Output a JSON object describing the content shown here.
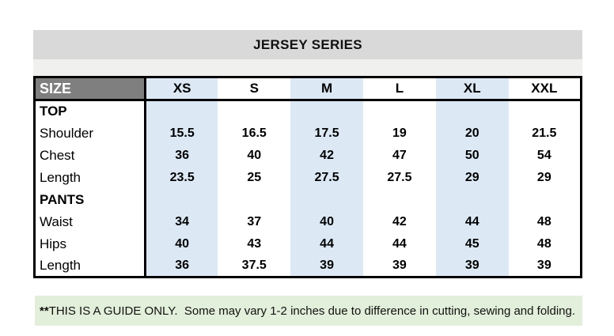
{
  "banner": {
    "title": "JERSEY SERIES",
    "bg": "#d9d9d9"
  },
  "table": {
    "header": {
      "label": "SIZE",
      "columns": [
        "XS",
        "S",
        "M",
        "L",
        "XL",
        "XXL"
      ]
    },
    "band_columns": [
      0,
      2,
      4
    ],
    "rows": [
      {
        "label": "TOP",
        "bold": true,
        "values": [
          "",
          "",
          "",
          "",
          "",
          ""
        ]
      },
      {
        "label": "Shoulder",
        "bold": false,
        "values": [
          "15.5",
          "16.5",
          "17.5",
          "19",
          "20",
          "21.5"
        ]
      },
      {
        "label": "Chest",
        "bold": false,
        "values": [
          "36",
          "40",
          "42",
          "47",
          "50",
          "54"
        ]
      },
      {
        "label": "Length",
        "bold": false,
        "values": [
          "23.5",
          "25",
          "27.5",
          "27.5",
          "29",
          "29"
        ]
      },
      {
        "label": "PANTS",
        "bold": true,
        "values": [
          "",
          "",
          "",
          "",
          "",
          ""
        ]
      },
      {
        "label": "Waist",
        "bold": false,
        "values": [
          "34",
          "37",
          "40",
          "42",
          "44",
          "48"
        ]
      },
      {
        "label": "Hips",
        "bold": false,
        "values": [
          "40",
          "43",
          "44",
          "44",
          "45",
          "48"
        ]
      },
      {
        "label": "Length",
        "bold": false,
        "values": [
          "36",
          "37.5",
          "39",
          "39",
          "39",
          "39"
        ]
      }
    ],
    "colors": {
      "header_label_bg": "#7f7f7f",
      "header_label_fg": "#ffffff",
      "band_blue": "#dce9f5",
      "border": "#000000"
    }
  },
  "footnote": {
    "prefix": "**",
    "text": "THIS IS A GUIDE ONLY.  Some may vary 1-2 inches due to difference in cutting, sewing and folding.",
    "bg": "#e2efda"
  }
}
